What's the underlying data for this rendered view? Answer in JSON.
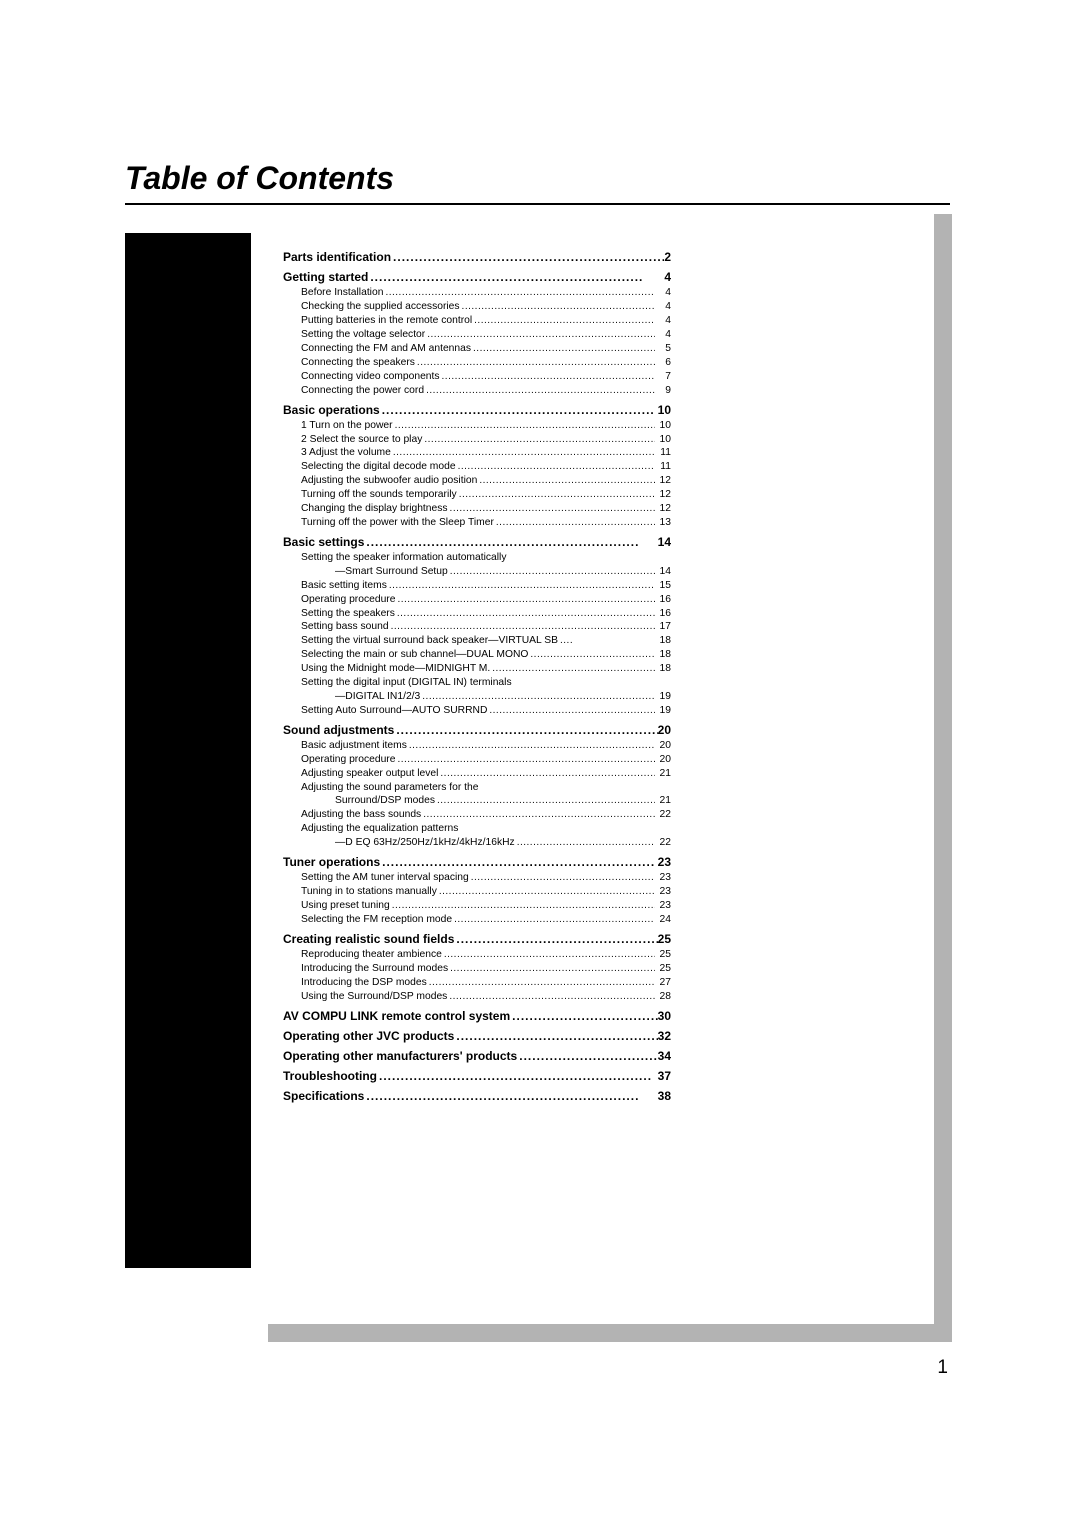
{
  "title": "Table of Contents",
  "dots_long": "...............................................................",
  "dots_short": "...................................................................................",
  "page_number": "1",
  "sections": [
    {
      "header": {
        "label": "Parts identification",
        "page": "2"
      },
      "items": []
    },
    {
      "header": {
        "label": "Getting started",
        "page": "4"
      },
      "items": [
        {
          "label": "Before Installation",
          "page": "4"
        },
        {
          "label": "Checking the supplied accessories",
          "page": "4"
        },
        {
          "label": "Putting batteries in the remote control",
          "page": "4"
        },
        {
          "label": "Setting the voltage selector",
          "page": "4"
        },
        {
          "label": "Connecting the FM and AM antennas",
          "page": "5"
        },
        {
          "label": "Connecting the speakers",
          "page": "6"
        },
        {
          "label": "Connecting video components",
          "page": "7"
        },
        {
          "label": "Connecting the power cord",
          "page": "9"
        }
      ]
    },
    {
      "header": {
        "label": "Basic operations",
        "page": "10"
      },
      "items": [
        {
          "label": "1  Turn on the power",
          "page": "10"
        },
        {
          "label": "2  Select the source to play",
          "page": "10"
        },
        {
          "label": "3  Adjust the volume",
          "page": "11"
        },
        {
          "label": "Selecting the digital decode mode",
          "page": "11"
        },
        {
          "label": "Adjusting the subwoofer audio position",
          "page": "12"
        },
        {
          "label": "Turning off the sounds temporarily",
          "page": "12"
        },
        {
          "label": "Changing the display brightness",
          "page": "12"
        },
        {
          "label": "Turning off the power with the Sleep Timer",
          "page": "13"
        }
      ]
    },
    {
      "header": {
        "label": "Basic settings",
        "page": "14"
      },
      "items": [
        {
          "label": "Setting the speaker information automatically",
          "nopage": true
        },
        {
          "label": "—Smart Surround Setup",
          "page": "14",
          "cont": true
        },
        {
          "label": "Basic setting items",
          "page": "15"
        },
        {
          "label": "Operating procedure",
          "page": "16"
        },
        {
          "label": "Setting the speakers",
          "page": "16"
        },
        {
          "label": "Setting bass sound",
          "page": "17"
        },
        {
          "label": "Setting the virtual surround back speaker—VIRTUAL SB",
          "page": "18",
          "tight": true
        },
        {
          "label": "Selecting the main or sub channel—DUAL MONO",
          "page": "18"
        },
        {
          "label": "Using the Midnight mode—MIDNIGHT M.",
          "page": "18"
        },
        {
          "label": "Setting the digital input (DIGITAL IN) terminals",
          "nopage": true
        },
        {
          "label": "—DIGITAL IN1/2/3",
          "page": "19",
          "cont": true
        },
        {
          "label": "Setting Auto Surround—AUTO SURRND",
          "page": "19"
        }
      ]
    },
    {
      "header": {
        "label": "Sound adjustments",
        "page": "20"
      },
      "items": [
        {
          "label": "Basic adjustment items",
          "page": "20"
        },
        {
          "label": "Operating procedure",
          "page": "20"
        },
        {
          "label": "Adjusting speaker output level",
          "page": "21"
        },
        {
          "label": "Adjusting the sound parameters for the",
          "nopage": true
        },
        {
          "label": "Surround/DSP modes",
          "page": "21",
          "cont": true
        },
        {
          "label": "Adjusting the bass sounds",
          "page": "22"
        },
        {
          "label": "Adjusting the equalization patterns",
          "nopage": true
        },
        {
          "label": "—D EQ 63Hz/250Hz/1kHz/4kHz/16kHz",
          "page": "22",
          "cont": true
        }
      ]
    },
    {
      "header": {
        "label": "Tuner operations",
        "page": "23"
      },
      "items": [
        {
          "label": "Setting the AM tuner interval spacing",
          "page": "23"
        },
        {
          "label": "Tuning in to stations manually",
          "page": "23"
        },
        {
          "label": "Using preset tuning",
          "page": "23"
        },
        {
          "label": "Selecting the FM reception mode",
          "page": "24"
        }
      ]
    },
    {
      "header": {
        "label": "Creating realistic sound fields",
        "page": "25"
      },
      "items": [
        {
          "label": "Reproducing theater ambience",
          "page": "25"
        },
        {
          "label": "Introducing the Surround modes",
          "page": "25"
        },
        {
          "label": "Introducing the DSP modes",
          "page": "27"
        },
        {
          "label": "Using the Surround/DSP modes",
          "page": "28"
        }
      ]
    },
    {
      "header": {
        "label": "AV COMPU LINK remote control system",
        "page": "30"
      },
      "items": []
    },
    {
      "header": {
        "label": "Operating other JVC products",
        "page": "32"
      },
      "items": []
    },
    {
      "header": {
        "label": "Operating other manufacturers' products",
        "page": "34"
      },
      "items": []
    },
    {
      "header": {
        "label": "Troubleshooting",
        "page": "37"
      },
      "items": []
    },
    {
      "header": {
        "label": "Specifications",
        "page": "38"
      },
      "items": []
    }
  ]
}
